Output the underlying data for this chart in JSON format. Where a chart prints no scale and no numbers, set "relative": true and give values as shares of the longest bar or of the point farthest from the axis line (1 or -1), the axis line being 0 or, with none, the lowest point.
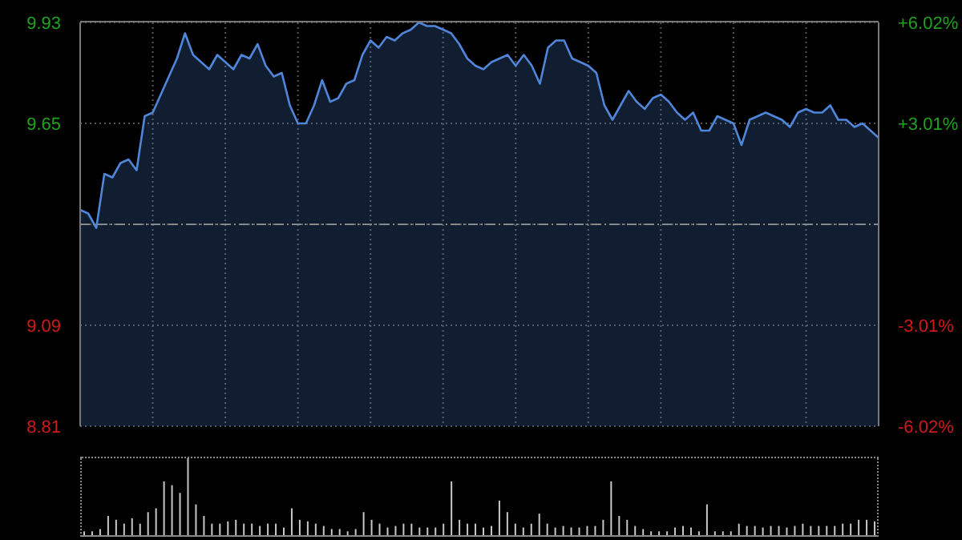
{
  "chart_data": [
    {
      "type": "area",
      "categories": [
        null,
        null,
        null,
        null,
        null,
        null,
        null,
        null,
        null,
        null,
        null,
        null,
        null,
        null,
        null,
        null,
        null,
        null,
        null,
        null,
        null,
        null,
        null,
        null,
        null,
        null,
        null,
        null,
        null,
        null,
        null,
        null,
        null,
        null,
        null,
        null,
        null,
        null,
        null,
        null,
        null,
        null,
        null,
        null,
        null,
        null,
        null,
        null,
        null,
        null,
        null,
        null,
        null,
        null,
        null,
        null,
        null,
        null,
        null,
        null,
        null,
        null,
        null,
        null,
        null,
        null,
        null,
        null,
        null,
        null,
        null,
        null,
        null,
        null,
        null,
        null,
        null,
        null,
        null,
        null,
        null,
        null,
        null,
        null,
        null,
        null,
        null,
        null,
        null,
        null,
        null,
        null,
        null,
        null,
        null,
        null,
        null,
        null,
        null,
        null
      ],
      "series": [
        {
          "color": "#4f86d9",
          "values": [
            9.41,
            9.4,
            9.36,
            9.51,
            9.5,
            9.54,
            9.55,
            9.52,
            9.67,
            9.68,
            9.73,
            9.78,
            9.83,
            9.9,
            9.84,
            9.82,
            9.8,
            9.84,
            9.82,
            9.8,
            9.84,
            9.83,
            9.87,
            9.81,
            9.78,
            9.79,
            9.7,
            9.65,
            9.65,
            9.7,
            9.77,
            9.71,
            9.72,
            9.76,
            9.77,
            9.84,
            9.88,
            9.86,
            9.89,
            9.88,
            9.9,
            9.91,
            9.93,
            9.92,
            9.92,
            9.91,
            9.9,
            9.87,
            9.83,
            9.81,
            9.8,
            9.82,
            9.83,
            9.84,
            9.81,
            9.84,
            9.81,
            9.76,
            9.86,
            9.88,
            9.88,
            9.83,
            9.82,
            9.81,
            9.79,
            9.7,
            9.66,
            9.7,
            9.74,
            9.71,
            9.69,
            9.72,
            9.73,
            9.71,
            9.68,
            9.66,
            9.68,
            9.63,
            9.63,
            9.67,
            9.66,
            9.65,
            9.59,
            9.66,
            9.67,
            9.68,
            9.67,
            9.66,
            9.64,
            9.68,
            9.69,
            9.68,
            9.68,
            9.7,
            9.66,
            9.66,
            9.64,
            9.65,
            9.63,
            9.61
          ]
        }
      ],
      "ylim": [
        8.81,
        9.93
      ],
      "yticks": [
        9.93,
        9.65,
        {
          "value": 9.37,
          "label": null
        },
        9.09,
        8.81
      ],
      "y2lim": [
        -6.02,
        6.02
      ],
      "y2ticks": [
        {
          "value": 6.02,
          "label": "+6.02%"
        },
        {
          "value": 3.01,
          "label": "+3.01%"
        },
        {
          "value": 0,
          "label": null
        },
        {
          "value": -3.01,
          "label": "-3.01%"
        },
        {
          "value": -6.02,
          "label": "-6.02%"
        }
      ],
      "grid": true,
      "tick_labels": "y",
      "ref_lines": [
        {
          "axis": "y",
          "value": 9.37,
          "line_style": "dashed"
        }
      ]
    },
    {
      "type": "bar",
      "relative": true,
      "color": "#c8c8c8",
      "categories": [
        null,
        null,
        null,
        null,
        null,
        null,
        null,
        null,
        null,
        null,
        null,
        null,
        null,
        null,
        null,
        null,
        null,
        null,
        null,
        null,
        null,
        null,
        null,
        null,
        null,
        null,
        null,
        null,
        null,
        null,
        null,
        null,
        null,
        null,
        null,
        null,
        null,
        null,
        null,
        null,
        null,
        null,
        null,
        null,
        null,
        null,
        null,
        null,
        null,
        null,
        null,
        null,
        null,
        null,
        null,
        null,
        null,
        null,
        null,
        null,
        null,
        null,
        null,
        null,
        null,
        null,
        null,
        null,
        null,
        null,
        null,
        null,
        null,
        null,
        null,
        null,
        null,
        null,
        null,
        null,
        null,
        null,
        null,
        null,
        null,
        null,
        null,
        null,
        null,
        null,
        null,
        null,
        null,
        null,
        null,
        null,
        null,
        null,
        null,
        null
      ],
      "values": [
        0.05,
        0.05,
        0.08,
        0.25,
        0.2,
        0.15,
        0.22,
        0.15,
        0.3,
        0.35,
        0.7,
        0.65,
        0.55,
        1,
        0.4,
        0.25,
        0.15,
        0.15,
        0.18,
        0.2,
        0.15,
        0.15,
        0.12,
        0.15,
        0.15,
        0.1,
        0.35,
        0.2,
        0.18,
        0.15,
        0.12,
        0.08,
        0.08,
        0.05,
        0.08,
        0.3,
        0.2,
        0.15,
        0.1,
        0.12,
        0.15,
        0.15,
        0.1,
        0.1,
        0.1,
        0.15,
        0.7,
        0.2,
        0.15,
        0.15,
        0.1,
        0.12,
        0.45,
        0.3,
        0.15,
        0.1,
        0.15,
        0.28,
        0.15,
        0.1,
        0.12,
        0.1,
        0.1,
        0.12,
        0.12,
        0.2,
        0.7,
        0.25,
        0.2,
        0.12,
        0.08,
        0.05,
        0.05,
        0.05,
        0.1,
        0.12,
        0.1,
        0.05,
        0.4,
        0.05,
        0.05,
        0.05,
        0.15,
        0.12,
        0.12,
        0.1,
        0.12,
        0.12,
        0.1,
        0.12,
        0.15,
        0.12,
        0.12,
        0.12,
        0.12,
        0.15,
        0.15,
        0.2,
        0.2,
        0.18
      ]
    }
  ]
}
